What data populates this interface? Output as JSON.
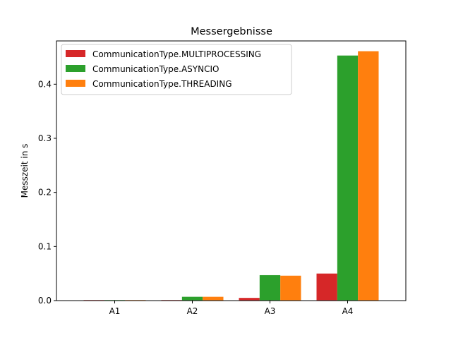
{
  "chart_data": {
    "type": "bar",
    "title": "Messergebnisse",
    "xlabel": "",
    "ylabel": "Messzeit in s",
    "categories": [
      "A1",
      "A2",
      "A3",
      "A4"
    ],
    "ylim": [
      0,
      0.48
    ],
    "yticks": [
      0.0,
      0.1,
      0.2,
      0.3,
      0.4
    ],
    "ytick_labels": [
      "0.0",
      "0.1",
      "0.2",
      "0.3",
      "0.4"
    ],
    "grid": false,
    "legend_position": "top-left",
    "series": [
      {
        "name": "CommunicationType.MULTIPROCESSING",
        "color": "#d62728",
        "values": [
          0.001,
          0.001,
          0.005,
          0.05
        ]
      },
      {
        "name": "CommunicationType.ASYNCIO",
        "color": "#2ca02c",
        "values": [
          0.001,
          0.007,
          0.047,
          0.453
        ]
      },
      {
        "name": "CommunicationType.THREADING",
        "color": "#ff7f0e",
        "values": [
          0.001,
          0.007,
          0.046,
          0.461
        ]
      }
    ]
  }
}
